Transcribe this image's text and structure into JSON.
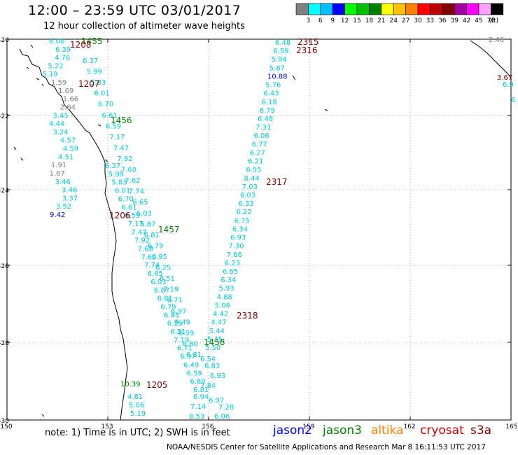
{
  "header": {
    "title": "12:00 – 23:59 UTC 03/01/2017",
    "subtitle": "12 hour collection of altimeter wave heights"
  },
  "colorbar": {
    "labels": [
      "3",
      "6",
      "9",
      "12",
      "15",
      "18",
      "21",
      "24",
      "27",
      "30",
      "33",
      "36",
      "39",
      "42",
      "45",
      "70",
      "(ft)"
    ],
    "colors": [
      "#808080",
      "#00ffff",
      "#00c0ff",
      "#0000ff",
      "#00ff00",
      "#00c000",
      "#008000",
      "#ffff00",
      "#ffc000",
      "#ff8000",
      "#ff0000",
      "#c00000",
      "#800000",
      "#a000a0",
      "#ff00ff",
      "#ffa0ff",
      "#000000"
    ]
  },
  "axes": {
    "lon_ticks": [
      "150",
      "153",
      "156",
      "159",
      "162",
      "165"
    ],
    "lat_ticks": [
      "-20",
      "-22",
      "-24",
      "-26",
      "-28",
      "-30"
    ]
  },
  "passes": [
    {
      "id": "p1455",
      "label": "1455",
      "color": "#008000"
    },
    {
      "id": "p1208",
      "label": "1208",
      "color": "#800000"
    },
    {
      "id": "p1207",
      "label": "1207",
      "color": "#800000"
    },
    {
      "id": "p1456",
      "label": "1456",
      "color": "#008000"
    },
    {
      "id": "p1206",
      "label": "1206",
      "color": "#800000"
    },
    {
      "id": "p1457",
      "label": "1457",
      "color": "#008000"
    },
    {
      "id": "p1458",
      "label": "1458",
      "color": "#008000"
    },
    {
      "id": "p1205",
      "label": "1205",
      "color": "#800000"
    },
    {
      "id": "p2315",
      "label": "2315",
      "color": "#800000"
    },
    {
      "id": "p2316",
      "label": "2316",
      "color": "#800000"
    },
    {
      "id": "p2317",
      "label": "2317",
      "color": "#800000"
    },
    {
      "id": "p2318",
      "label": "2318",
      "color": "#800000"
    }
  ],
  "east_track_values": [
    "6.48",
    "6.59",
    "5.94",
    "5.87",
    "10.88",
    "5.76",
    "6.43",
    "6.18",
    "6.79",
    "6.48",
    "7.31",
    "6.06",
    "6.77",
    "6.27",
    "6.21",
    "6.55",
    "8.44",
    "7.03",
    "6.03",
    "6.33",
    "6.22",
    "6.75",
    "6.34",
    "6.93",
    "7.30",
    "7.66",
    "6.23",
    "6.65",
    "6.34",
    "5.93",
    "4.88",
    "5.06",
    "4.42",
    "4.47",
    "5.44",
    "5.35",
    "5.50"
  ],
  "coast_values": [
    "6.08",
    "6.39",
    "4.76",
    "5.22",
    "5.19",
    "1.59",
    "1.69",
    "1.66",
    "2.64",
    "3.45",
    "4.44",
    "3.24",
    "4.57",
    "4.59",
    "4.51",
    "1.91",
    "1.67",
    "3.46",
    "3.46",
    "3.37",
    "3.52",
    "9.42"
  ],
  "diag_values": [
    "6.37",
    "5.99",
    "5.83",
    "6.01",
    "6.70",
    "6.61",
    "6.59",
    "7.17",
    "7.47",
    "7.92",
    "7.68",
    "7.62",
    "7.74",
    "6.65",
    "6.03",
    "6.87",
    "6.81",
    "6.79",
    "6.95",
    "6.25",
    "6.51",
    "7.19",
    "6.71",
    "6.97",
    "6.49",
    "6.59",
    "6.80",
    "6.81"
  ],
  "bottom_values": [
    "10.39",
    "4.81",
    "5.06",
    "5.19",
    "8.53",
    "6.06",
    "7.14",
    "7.28",
    "6.94",
    "6.97",
    "7.84",
    "6.93",
    "6.83",
    "6.54"
  ],
  "misc_values": [
    "2.46",
    "3.67",
    "6.9",
    "6."
  ],
  "footer": {
    "note": "note:  1) Time is in UTC;  2) SWH is in feet",
    "satellites": [
      {
        "id": "jason2",
        "label": "jason2",
        "color": "#0000ff"
      },
      {
        "id": "jason3",
        "label": "jason3",
        "color": "#008000"
      },
      {
        "id": "altika",
        "label": "altika",
        "color": "#ff8000"
      },
      {
        "id": "cryosat",
        "label": "cryosat",
        "color": "#c00000"
      },
      {
        "id": "s3a",
        "label": "s3a",
        "color": "#800000"
      }
    ],
    "credit": "NOAA/NESDIS Center for Satellite Applications and Research    Mar  8 16:11:53 UTC 2017"
  }
}
